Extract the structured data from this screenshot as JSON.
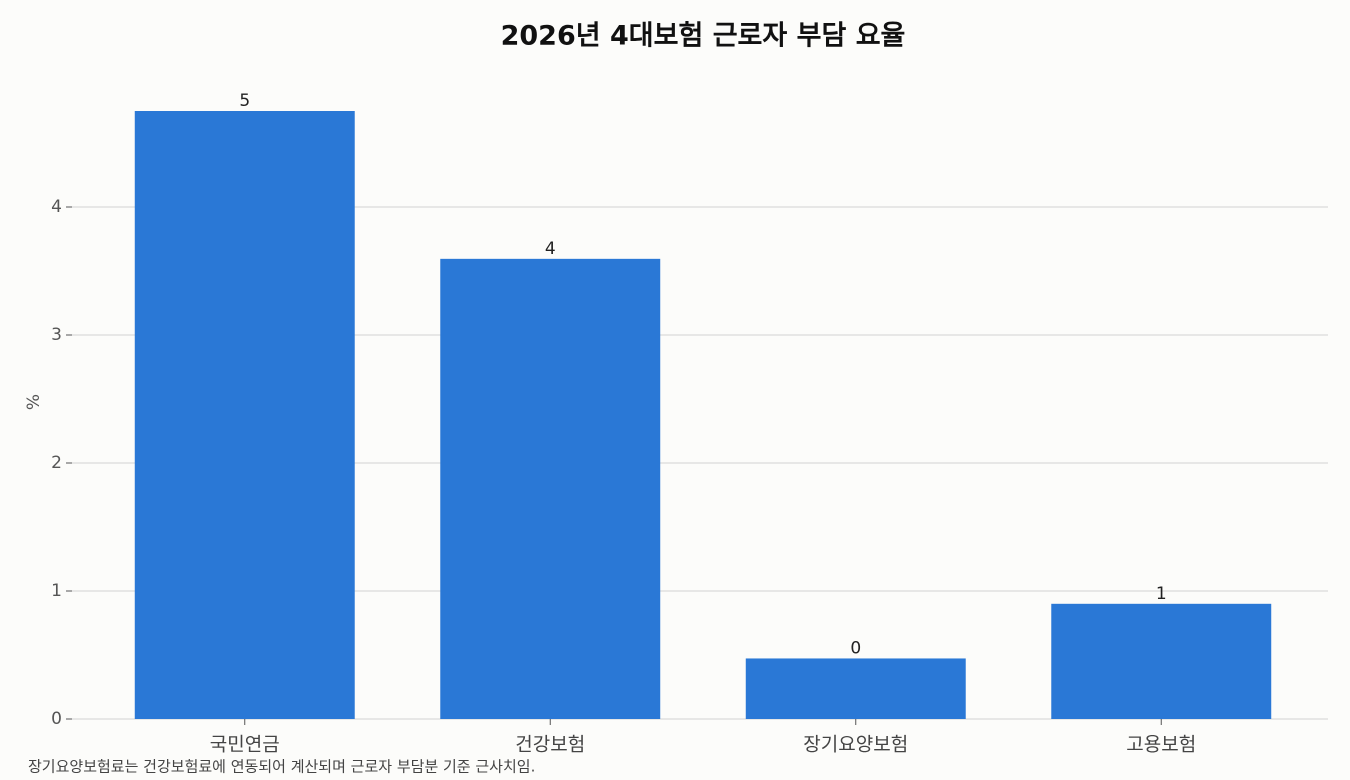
{
  "chart_data": {
    "type": "bar",
    "title": "2026년 4대보험 근로자 부담 요율",
    "categories": [
      "국민연금",
      "건강보험",
      "장기요양보험",
      "고용보험"
    ],
    "values": [
      4.75,
      3.595,
      0.473,
      0.9
    ],
    "value_labels": [
      "5",
      "4",
      "0",
      "1"
    ],
    "color": "#2a78d6",
    "y_label": "%",
    "ylim": [
      0,
      5
    ],
    "yticks": [
      0,
      1,
      2,
      3,
      4
    ],
    "grid": true,
    "note": "장기요양보험료는 건강보험료에 연동되어 계산되며 근로자 부담분 기준 근사치임."
  }
}
